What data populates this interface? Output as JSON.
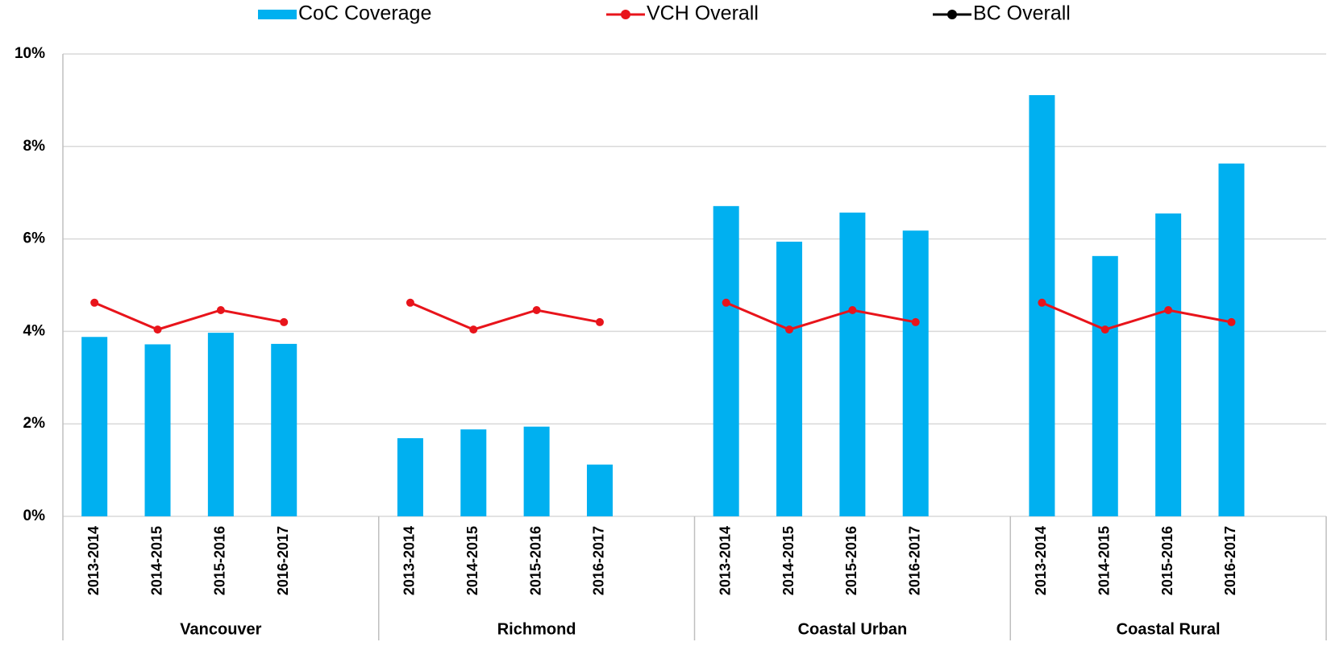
{
  "chart_data": {
    "type": "bar",
    "categories": [
      "2013-2014",
      "2014-2015",
      "2015-2016",
      "2016-2017",
      "2013-2014",
      "2014-2015",
      "2015-2016",
      "2016-2017",
      "2013-2014",
      "2014-2015",
      "2015-2016",
      "2016-2017",
      "2013-2014",
      "2014-2015",
      "2015-2016",
      "2016-2017"
    ],
    "groups": [
      "Vancouver",
      "Richmond",
      "Coastal Urban",
      "Coastal Rural"
    ],
    "series": [
      {
        "name": "CoC Coverage",
        "type": "bar",
        "color": "#00b0f0",
        "values": [
          3.88,
          3.72,
          3.97,
          3.73,
          1.69,
          1.88,
          1.94,
          1.12,
          6.71,
          5.94,
          6.57,
          6.18,
          9.11,
          5.63,
          6.55,
          7.63
        ]
      },
      {
        "name": "VCH Overall",
        "type": "line",
        "color": "#e8141b",
        "values": [
          4.62,
          4.04,
          4.46,
          4.2,
          4.62,
          4.04,
          4.46,
          4.2,
          4.62,
          4.04,
          4.46,
          4.2,
          4.62,
          4.04,
          4.46,
          4.2
        ]
      },
      {
        "name": "BC Overall",
        "type": "line",
        "color": "#000000",
        "values": [
          null,
          null,
          null,
          null,
          null,
          null,
          null,
          null,
          null,
          null,
          null,
          null,
          null,
          null,
          null,
          null
        ]
      }
    ],
    "ylim": [
      0,
      10
    ],
    "yticks": [
      {
        "value": 0,
        "label": "0%"
      },
      {
        "value": 2,
        "label": "2%"
      },
      {
        "value": 4,
        "label": "4%"
      },
      {
        "value": 6,
        "label": "6%"
      },
      {
        "value": 8,
        "label": "8%"
      },
      {
        "value": 10,
        "label": "10%"
      }
    ],
    "grid": true,
    "legend": "top"
  }
}
